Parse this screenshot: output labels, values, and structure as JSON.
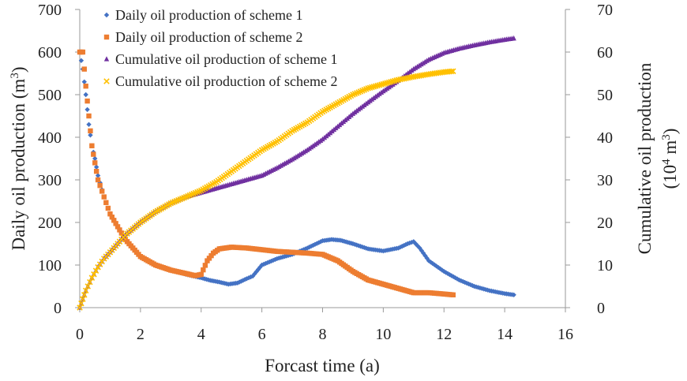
{
  "chart_data": {
    "type": "scatter",
    "title": "",
    "xlabel": "Forcast time (a)",
    "ylabel_left": "Daily oil production (m",
    "ylabel_left_sup": "3",
    "ylabel_left_end": ")",
    "ylabel_right_line1": "Cumulative oil production",
    "ylabel_right_line2_pre": "(10",
    "ylabel_right_line2_sup": "4",
    "ylabel_right_line2_post": " m",
    "ylabel_right_line2_sup2": "3",
    "ylabel_right_line2_end": ")",
    "xlim": [
      0,
      16
    ],
    "ylim_left": [
      0,
      700
    ],
    "ylim_right": [
      0,
      70
    ],
    "x_ticks": [
      "0",
      "2",
      "4",
      "6",
      "8",
      "10",
      "12",
      "14",
      "16"
    ],
    "y_left_ticks": [
      "0",
      "100",
      "200",
      "300",
      "400",
      "500",
      "600",
      "700"
    ],
    "y_right_ticks": [
      "0",
      "10",
      "20",
      "30",
      "40",
      "50",
      "60",
      "70"
    ],
    "legend_position": "top-left",
    "series": [
      {
        "name": "Daily oil production of scheme 1",
        "axis": "left",
        "marker": "diamond",
        "color": "#4472C4",
        "x": [
          0.0,
          0.1,
          0.2,
          0.3,
          0.4,
          0.5,
          0.6,
          0.8,
          1.0,
          1.5,
          2.0,
          2.5,
          3.0,
          3.5,
          4.0,
          4.3,
          4.6,
          4.9,
          5.2,
          5.5,
          5.7,
          6.0,
          6.5,
          7.0,
          7.5,
          8.0,
          8.3,
          8.6,
          9.0,
          9.5,
          10.0,
          10.5,
          10.8,
          11.0,
          11.2,
          11.5,
          12.0,
          12.5,
          13.0,
          13.5,
          14.0,
          14.3
        ],
        "y": [
          600,
          560,
          500,
          430,
          380,
          350,
          310,
          260,
          220,
          160,
          120,
          100,
          88,
          78,
          70,
          64,
          60,
          55,
          58,
          68,
          74,
          100,
          115,
          125,
          140,
          157,
          160,
          158,
          150,
          138,
          133,
          140,
          150,
          155,
          140,
          110,
          85,
          65,
          50,
          40,
          33,
          30
        ]
      },
      {
        "name": "Daily oil production of scheme 2",
        "axis": "left",
        "marker": "square",
        "color": "#ED7D31",
        "x": [
          0.0,
          0.1,
          0.2,
          0.3,
          0.4,
          0.5,
          0.6,
          0.8,
          1.0,
          1.5,
          2.0,
          2.5,
          3.0,
          3.5,
          3.8,
          4.0,
          4.2,
          4.4,
          4.6,
          5.0,
          5.5,
          6.0,
          6.5,
          7.0,
          7.5,
          8.0,
          8.5,
          9.0,
          9.5,
          10.0,
          10.5,
          11.0,
          11.5,
          12.0,
          12.3
        ],
        "y": [
          600,
          600,
          520,
          450,
          380,
          340,
          300,
          260,
          220,
          160,
          120,
          100,
          88,
          80,
          75,
          78,
          110,
          128,
          138,
          142,
          140,
          136,
          132,
          130,
          128,
          125,
          110,
          85,
          65,
          55,
          45,
          35,
          35,
          32,
          30
        ]
      },
      {
        "name": "Cumulative oil production of scheme 1",
        "axis": "right",
        "marker": "triangle",
        "color": "#7030A0",
        "x": [
          0.0,
          0.1,
          0.2,
          0.4,
          0.6,
          0.8,
          1.0,
          1.5,
          2.0,
          2.5,
          3.0,
          3.5,
          4.0,
          4.5,
          5.0,
          5.5,
          6.0,
          6.5,
          7.0,
          7.5,
          8.0,
          8.5,
          9.0,
          9.5,
          10.0,
          10.5,
          11.0,
          11.5,
          12.0,
          12.5,
          13.0,
          13.5,
          14.0,
          14.3
        ],
        "y": [
          0,
          2,
          4,
          7,
          9.5,
          11.5,
          13,
          17,
          20,
          22.5,
          24.5,
          26,
          27,
          28,
          29,
          30,
          31,
          32.8,
          34.8,
          37,
          39.5,
          42.5,
          45.5,
          48.2,
          50.8,
          53.3,
          56,
          58.2,
          59.8,
          60.8,
          61.6,
          62.3,
          62.9,
          63.2
        ]
      },
      {
        "name": "Cumulative oil production of scheme 2",
        "axis": "right",
        "marker": "cross",
        "color": "#FFC000",
        "x": [
          0.0,
          0.1,
          0.2,
          0.4,
          0.6,
          0.8,
          1.0,
          1.5,
          2.0,
          2.5,
          3.0,
          3.5,
          4.0,
          4.5,
          5.0,
          5.5,
          6.0,
          6.5,
          7.0,
          7.5,
          8.0,
          8.5,
          9.0,
          9.5,
          10.0,
          10.5,
          11.0,
          11.5,
          12.0,
          12.3
        ],
        "y": [
          0,
          2,
          4,
          7,
          9.5,
          11.5,
          13,
          17,
          20,
          22.5,
          24.5,
          26,
          27.5,
          29.5,
          32,
          34.5,
          37,
          39,
          41.5,
          43.5,
          46,
          48,
          50,
          51.5,
          52.5,
          53.5,
          54.2,
          54.8,
          55.3,
          55.5
        ]
      }
    ]
  }
}
